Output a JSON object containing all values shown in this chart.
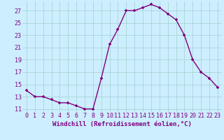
{
  "x": [
    0,
    1,
    2,
    3,
    4,
    5,
    6,
    7,
    8,
    9,
    10,
    11,
    12,
    13,
    14,
    15,
    16,
    17,
    18,
    19,
    20,
    21,
    22,
    23
  ],
  "y": [
    14.0,
    13.0,
    13.0,
    12.5,
    12.0,
    12.0,
    11.5,
    11.0,
    11.0,
    16.0,
    21.5,
    24.0,
    27.0,
    27.0,
    27.5,
    28.0,
    27.5,
    26.5,
    25.5,
    23.0,
    19.0,
    17.0,
    16.0,
    14.5
  ],
  "line_color": "#800080",
  "marker": "+",
  "xlabel": "Windchill (Refroidissement éolien,°C)",
  "ylim": [
    10.5,
    28.5
  ],
  "yticks": [
    11,
    13,
    15,
    17,
    19,
    21,
    23,
    25,
    27
  ],
  "xticks": [
    0,
    1,
    2,
    3,
    4,
    5,
    6,
    7,
    8,
    9,
    10,
    11,
    12,
    13,
    14,
    15,
    16,
    17,
    18,
    19,
    20,
    21,
    22,
    23
  ],
  "bg_color": "#cceeff",
  "grid_color": "#aad4d4",
  "tick_color": "#800080",
  "label_color": "#800080",
  "font_family": "monospace",
  "tick_fontsize": 6,
  "label_fontsize": 6.5
}
